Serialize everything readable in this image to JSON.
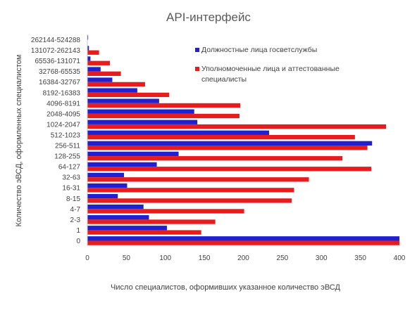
{
  "chart_data": {
    "type": "bar",
    "orientation": "horizontal",
    "title": "API-интерфейс",
    "xlabel": "Число специалистов, оформивших указанное количество эВСД",
    "ylabel": "Количество эВСД, оформленных специалистом",
    "xlim": [
      0,
      400
    ],
    "xticks": [
      "0",
      "50",
      "100",
      "150",
      "200",
      "250",
      "300",
      "350",
      "400"
    ],
    "categories": [
      "0",
      "1",
      "2-3",
      "4-7",
      "8-15",
      "16-31",
      "32-63",
      "64-127",
      "128-255",
      "256-511",
      "512-1023",
      "1024-2047",
      "2048-4095",
      "4096-8191",
      "8192-16383",
      "16384-32767",
      "32768-65535",
      "65536-131071",
      "131072-262143",
      "262144-524288"
    ],
    "series": [
      {
        "name": "Должностные лица госветслужбы",
        "color": "#2020d0",
        "values": [
          400,
          102,
          79,
          72,
          39,
          51,
          47,
          89,
          117,
          365,
          233,
          141,
          137,
          92,
          64,
          32,
          17,
          4,
          2,
          1
        ]
      },
      {
        "name": "Уполномоченные лица и аттестованные специалисты",
        "color": "#e81c1c",
        "values": [
          400,
          146,
          164,
          201,
          262,
          265,
          284,
          364,
          327,
          359,
          343,
          383,
          195,
          196,
          105,
          74,
          43,
          29,
          15,
          0
        ]
      }
    ],
    "grid": false,
    "legend": "top-right"
  }
}
